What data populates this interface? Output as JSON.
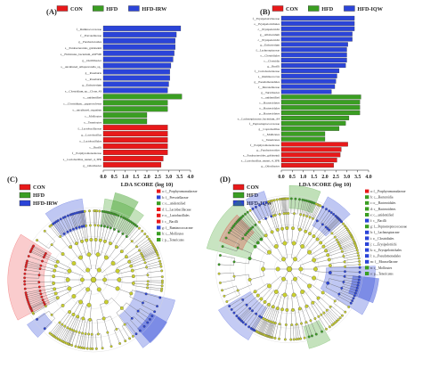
{
  "chart_data": [
    {
      "panel": "(A)",
      "type": "bar",
      "orientation": "horizontal",
      "xlabel": "LDA SCORE (log 10)",
      "xlim": [
        0,
        4.0
      ],
      "xticks": [
        "0.0",
        "0.5",
        "1.0",
        "1.5",
        "2.0",
        "2.5",
        "3.0",
        "3.5",
        "4.0"
      ],
      "legend": [
        {
          "name": "CON",
          "color": "#e8191a"
        },
        {
          "name": "HFD",
          "color": "#3a9e22"
        },
        {
          "name": "HFD-IRW",
          "color": "#2b44d8"
        }
      ],
      "bars": [
        {
          "label": "f__Ruminococcaceae",
          "value": 3.55,
          "group": "HFD-IRW"
        },
        {
          "label": "f__Prevotellaceae",
          "value": 3.35,
          "group": "HFD-IRW"
        },
        {
          "label": "g__Parabacteroides",
          "value": 3.3,
          "group": "HFD-IRW"
        },
        {
          "label": "s__Parabacteroides_goldsteinii",
          "value": 3.3,
          "group": "HFD-IRW"
        },
        {
          "label": "s__Firmicutes_bacterium_ASF500",
          "value": 3.25,
          "group": "HFD-IRW"
        },
        {
          "label": "g__Oscillibacter",
          "value": 3.2,
          "group": "HFD-IRW"
        },
        {
          "label": "s__uncultured_Alloprevotella_sp_",
          "value": 3.1,
          "group": "HFD-IRW"
        },
        {
          "label": "g__Roseburia",
          "value": 3.05,
          "group": "HFD-IRW"
        },
        {
          "label": "s__Roseburia",
          "value": 3.05,
          "group": "HFD-IRW"
        },
        {
          "label": "g__Eubacterium",
          "value": 3.0,
          "group": "HFD-IRW"
        },
        {
          "label": "s__Clostridium_sp__Clone_43",
          "value": 2.95,
          "group": "HFD-IRW"
        },
        {
          "label": "o__unidentified",
          "value": 3.6,
          "group": "HFD"
        },
        {
          "label": "c__Clostridium__papyrosolvens",
          "value": 2.95,
          "group": "HFD"
        },
        {
          "label": "s__uncultured_organism",
          "value": 2.95,
          "group": "HFD"
        },
        {
          "label": "c__Mollicutes",
          "value": 2.0,
          "group": "HFD"
        },
        {
          "label": "o__Tenericutes",
          "value": 2.0,
          "group": "HFD"
        },
        {
          "label": "f__Lactobacillaceae",
          "value": 2.95,
          "group": "CON"
        },
        {
          "label": "g__Lactobacillus",
          "value": 2.95,
          "group": "CON"
        },
        {
          "label": "o__Lactobacillales",
          "value": 2.95,
          "group": "CON"
        },
        {
          "label": "c__Bacilli",
          "value": 2.95,
          "group": "CON"
        },
        {
          "label": "f__Porphyromonadaceae",
          "value": 2.95,
          "group": "CON"
        },
        {
          "label": "s__Lactobacillus_reuteri_4_3PR",
          "value": 2.75,
          "group": "CON"
        },
        {
          "label": "g__Odoribacter",
          "value": 2.65,
          "group": "CON"
        }
      ]
    },
    {
      "panel": "(B)",
      "type": "bar",
      "orientation": "horizontal",
      "xlabel": "LDA SCORE (log 10)",
      "xlim": [
        0,
        4.0
      ],
      "xticks": [
        "0.0",
        "0.5",
        "1.0",
        "1.5",
        "2.0",
        "2.5",
        "3.0",
        "3.5",
        "4.0"
      ],
      "legend": [
        {
          "name": "CON",
          "color": "#e8191a"
        },
        {
          "name": "HFD",
          "color": "#3a9e22"
        },
        {
          "name": "HFD-IQW",
          "color": "#2b44d8"
        }
      ],
      "bars": [
        {
          "label": "f__Erysipelotrichaceae",
          "value": 3.35,
          "group": "HFD-IQW"
        },
        {
          "label": "o__Erysipelotrichales",
          "value": 3.35,
          "group": "HFD-IQW"
        },
        {
          "label": "c__Erysipelotrichi",
          "value": 3.35,
          "group": "HFD-IQW"
        },
        {
          "label": "g__Allobaculum",
          "value": 3.25,
          "group": "HFD-IQW"
        },
        {
          "label": "c__Erysipelotrichi",
          "value": 3.25,
          "group": "HFD-IQW"
        },
        {
          "label": "g__Eubacterium",
          "value": 3.05,
          "group": "HFD-IQW"
        },
        {
          "label": "f__Lachnospiraceae",
          "value": 3.0,
          "group": "HFD-IQW"
        },
        {
          "label": "o__Clostridiales",
          "value": 3.0,
          "group": "HFD-IQW"
        },
        {
          "label": "c__Clostridia",
          "value": 3.0,
          "group": "HFD-IQW"
        },
        {
          "label": "g__Bacilli",
          "value": 2.95,
          "group": "HFD-IQW"
        },
        {
          "label": "f__Coriobacteriaceae",
          "value": 2.65,
          "group": "HFD-IQW"
        },
        {
          "label": "s__Ruminococcus",
          "value": 2.55,
          "group": "HFD-IQW"
        },
        {
          "label": "g__Pseudomonadales",
          "value": 2.5,
          "group": "HFD-IQW"
        },
        {
          "label": "f__Moraxellaceae",
          "value": 2.45,
          "group": "HFD-IQW"
        },
        {
          "label": "g__Turicibacter",
          "value": 2.3,
          "group": "HFD-IQW"
        },
        {
          "label": "o__unidentified",
          "value": 3.65,
          "group": "HFD"
        },
        {
          "label": "c__Bacteroidetes",
          "value": 3.6,
          "group": "HFD"
        },
        {
          "label": "o__Bacteroidales",
          "value": 3.6,
          "group": "HFD"
        },
        {
          "label": "p__Bacteroidetes",
          "value": 3.6,
          "group": "HFD"
        },
        {
          "label": "s__Lachnospiraceae_bacterium_A4",
          "value": 3.1,
          "group": "HFD"
        },
        {
          "label": "f__Peptostreptococcaceae",
          "value": 2.95,
          "group": "HFD"
        },
        {
          "label": "g__Coprobacillus",
          "value": 2.65,
          "group": "HFD"
        },
        {
          "label": "c__Mollicutes",
          "value": 2.0,
          "group": "HFD"
        },
        {
          "label": "o__Tenericutes",
          "value": 2.0,
          "group": "HFD"
        },
        {
          "label": "f__Porphyromonadaceae",
          "value": 3.05,
          "group": "CON"
        },
        {
          "label": "g__Parabacteroides",
          "value": 2.75,
          "group": "CON"
        },
        {
          "label": "s__Parabacteroides_goldsteinii",
          "value": 2.7,
          "group": "CON"
        },
        {
          "label": "s__Lactobacillus_reuteri_4_3PR",
          "value": 2.55,
          "group": "CON"
        },
        {
          "label": "g__Odoribacter",
          "value": 2.4,
          "group": "CON"
        }
      ]
    },
    {
      "panel": "(C)",
      "type": "cladogram",
      "legend": [
        {
          "name": "CON",
          "color": "#e8191a"
        },
        {
          "name": "HFD",
          "color": "#3a9e22"
        },
        {
          "name": "HFD-IRW",
          "color": "#2b44d8"
        }
      ],
      "key": [
        {
          "label": "a: f__Porphyromonadaceae",
          "color": "#e8191a"
        },
        {
          "label": "b: f__Prevotellaceae",
          "color": "#2b44d8"
        },
        {
          "label": "c: o__unidentified",
          "color": "#3a9e22"
        },
        {
          "label": "d: f__Lactobacillaceae",
          "color": "#e8191a"
        },
        {
          "label": "e: o__Lactobacillales",
          "color": "#e8191a"
        },
        {
          "label": "f: c__Bacilli",
          "color": "#e8191a"
        },
        {
          "label": "g: f__Ruminococcaceae",
          "color": "#2b44d8"
        },
        {
          "label": "h: c__Mollicutes",
          "color": "#3a9e22"
        },
        {
          "label": "i: p__Tenericutes",
          "color": "#3a9e22"
        }
      ]
    },
    {
      "panel": "(D)",
      "type": "cladogram",
      "legend": [
        {
          "name": "CON",
          "color": "#e8191a"
        },
        {
          "name": "HFD",
          "color": "#3a9e22"
        },
        {
          "name": "HFD-IQW",
          "color": "#2b44d8"
        }
      ],
      "key": [
        {
          "label": "a: f__Porphyromonadaceae",
          "color": "#e8191a"
        },
        {
          "label": "b: c__Bacteroidia",
          "color": "#3a9e22"
        },
        {
          "label": "c: o__Bacteroidales",
          "color": "#3a9e22"
        },
        {
          "label": "d: c__Bacteroidetes",
          "color": "#3a9e22"
        },
        {
          "label": "e: c__unidentified",
          "color": "#3a9e22"
        },
        {
          "label": "f: c__Bacilli",
          "color": "#2b44d8"
        },
        {
          "label": "g: f__Peptostreptococcaceae",
          "color": "#3a9e22"
        },
        {
          "label": "h: f__Lachnospiraceae",
          "color": "#2b44d8"
        },
        {
          "label": "i: o__Clostridiales",
          "color": "#2b44d8"
        },
        {
          "label": "j: c__Erysipelotrichi",
          "color": "#2b44d8"
        },
        {
          "label": "k: o__Erysipelotrichales",
          "color": "#2b44d8"
        },
        {
          "label": "l: o__Pseudomonadales",
          "color": "#2b44d8"
        },
        {
          "label": "m: f__Moraxellaceae",
          "color": "#2b44d8"
        },
        {
          "label": "n: c__Mollicutes",
          "color": "#3a9e22"
        },
        {
          "label": "o: p__Tenericutes",
          "color": "#3a9e22"
        }
      ]
    }
  ]
}
